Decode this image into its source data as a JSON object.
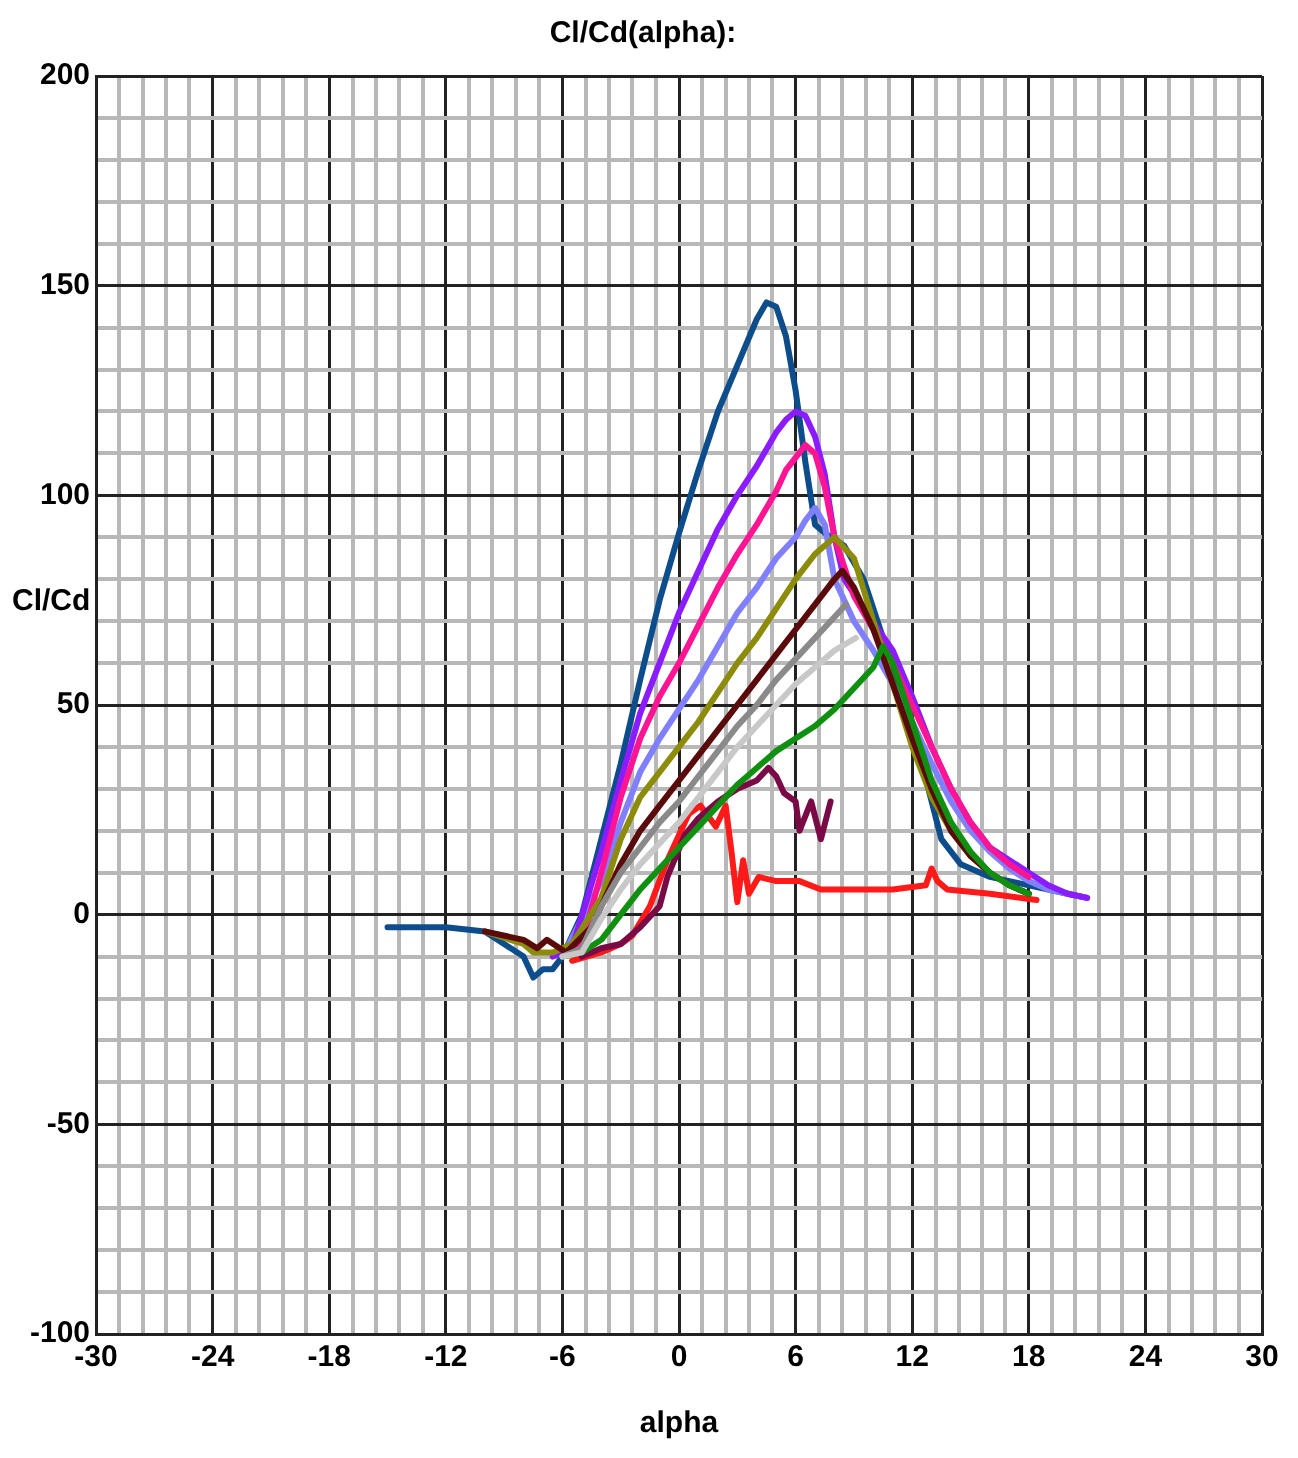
{
  "chart_data": {
    "type": "line",
    "title": "Cl/Cd(alpha):",
    "xlabel": "alpha",
    "ylabel": "Cl/Cd",
    "xlim": [
      -30,
      30
    ],
    "ylim": [
      -100,
      200
    ],
    "xticks": [
      -30,
      {
        "value": -28.8,
        "label": null
      },
      {
        "value": -27.6,
        "label": null
      },
      {
        "value": -26.4,
        "label": null
      },
      {
        "value": -25.2,
        "label": null
      },
      -24,
      {
        "value": -22.8,
        "label": null
      },
      {
        "value": -21.6,
        "label": null
      },
      {
        "value": -20.4,
        "label": null
      },
      {
        "value": -19.2,
        "label": null
      },
      -18,
      {
        "value": -16.8,
        "label": null
      },
      {
        "value": -15.6,
        "label": null
      },
      {
        "value": -14.4,
        "label": null
      },
      {
        "value": -13.2,
        "label": null
      },
      -12,
      {
        "value": -10.8,
        "label": null
      },
      {
        "value": -9.6,
        "label": null
      },
      {
        "value": -8.4,
        "label": null
      },
      {
        "value": -7.2,
        "label": null
      },
      -6,
      {
        "value": -4.8,
        "label": null
      },
      {
        "value": -3.6,
        "label": null
      },
      {
        "value": -2.4,
        "label": null
      },
      {
        "value": -1.2,
        "label": null
      },
      0,
      {
        "value": 1.2,
        "label": null
      },
      {
        "value": 2.4,
        "label": null
      },
      {
        "value": 3.6,
        "label": null
      },
      {
        "value": 4.8,
        "label": null
      },
      6,
      {
        "value": 7.2,
        "label": null
      },
      {
        "value": 8.4,
        "label": null
      },
      {
        "value": 9.6,
        "label": null
      },
      {
        "value": 10.8,
        "label": null
      },
      12,
      {
        "value": 13.2,
        "label": null
      },
      {
        "value": 14.4,
        "label": null
      },
      {
        "value": 15.6,
        "label": null
      },
      {
        "value": 16.8,
        "label": null
      },
      18,
      {
        "value": 19.2,
        "label": null
      },
      {
        "value": 20.4,
        "label": null
      },
      {
        "value": 21.6,
        "label": null
      },
      {
        "value": 22.8,
        "label": null
      },
      24,
      {
        "value": 25.2,
        "label": null
      },
      {
        "value": 26.4,
        "label": null
      },
      {
        "value": 27.6,
        "label": null
      },
      {
        "value": 28.8,
        "label": null
      },
      30
    ],
    "yticks": [
      -100,
      {
        "value": -90,
        "label": null
      },
      {
        "value": -80,
        "label": null
      },
      {
        "value": -70,
        "label": null
      },
      {
        "value": -60,
        "label": null
      },
      -50,
      {
        "value": -40,
        "label": null
      },
      {
        "value": -30,
        "label": null
      },
      {
        "value": -20,
        "label": null
      },
      {
        "value": -10,
        "label": null
      },
      0,
      {
        "value": 10,
        "label": null
      },
      {
        "value": 20,
        "label": null
      },
      {
        "value": 30,
        "label": null
      },
      {
        "value": 40,
        "label": null
      },
      50,
      {
        "value": 60,
        "label": null
      },
      {
        "value": 70,
        "label": null
      },
      {
        "value": 80,
        "label": null
      },
      {
        "value": 90,
        "label": null
      },
      100,
      {
        "value": 110,
        "label": null
      },
      {
        "value": 120,
        "label": null
      },
      {
        "value": 130,
        "label": null
      },
      {
        "value": 140,
        "label": null
      },
      150,
      {
        "value": 160,
        "label": null
      },
      {
        "value": 170,
        "label": null
      },
      {
        "value": 180,
        "label": null
      },
      {
        "value": 190,
        "label": null
      },
      200
    ],
    "grid": true,
    "legend": false,
    "marker": "none",
    "line_style": "solid",
    "series": [
      {
        "color": "#c8c8c8",
        "x": [
          -6,
          -5,
          -4,
          -3,
          -2,
          -1,
          0,
          1,
          2,
          3,
          4,
          5,
          6,
          7,
          8,
          9.1
        ],
        "values": [
          -10,
          -9,
          -1,
          6,
          12,
          17,
          22,
          28,
          34,
          40,
          45,
          50,
          55,
          59,
          63,
          66
        ]
      },
      {
        "color": "#8a8a8a",
        "x": [
          -6,
          -5,
          -4,
          -3,
          -2,
          -1,
          0,
          1,
          2,
          3,
          4,
          5,
          6,
          7,
          8,
          8.6
        ],
        "values": [
          -10,
          -8,
          2,
          10,
          16,
          22,
          27,
          33,
          39,
          45,
          50,
          56,
          61,
          66,
          71,
          74
        ]
      },
      {
        "color": "#109010",
        "x": [
          -6,
          -5,
          -4,
          -3,
          -2,
          -1,
          0,
          1,
          2,
          3,
          4,
          5,
          6,
          7,
          8,
          9,
          10,
          10.5,
          11,
          12,
          13,
          14,
          15,
          16,
          17,
          18
        ],
        "values": [
          -10,
          -9,
          -6,
          0,
          6,
          11,
          16,
          21,
          26,
          31,
          35,
          39,
          42,
          45,
          49,
          54,
          59,
          64,
          60,
          46,
          32,
          22,
          15,
          10,
          7,
          5
        ]
      },
      {
        "color": "#5a0a0a",
        "x": [
          -10,
          -8,
          -7.3,
          -6.8,
          -5.8,
          -4.5,
          -3,
          -2,
          -1,
          0,
          1,
          2,
          3,
          4,
          5,
          6,
          7,
          8,
          8.4,
          9,
          10,
          11,
          12,
          13,
          14,
          15,
          16,
          17,
          18
        ],
        "values": [
          -4,
          -6,
          -8,
          -6,
          -9,
          -3,
          12,
          20,
          26,
          32,
          38,
          44,
          50,
          56,
          62,
          68,
          74,
          80,
          82,
          78,
          68,
          55,
          42,
          30,
          20,
          14,
          10,
          7,
          5
        ]
      },
      {
        "color": "#8c8c0a",
        "x": [
          -10,
          -8,
          -7.5,
          -6.5,
          -5.5,
          -4,
          -3,
          -2,
          -1,
          0,
          1,
          2,
          3,
          4,
          5,
          6,
          7,
          8,
          9,
          10,
          11,
          12,
          13,
          14,
          15,
          16,
          17,
          18
        ],
        "values": [
          -4,
          -7,
          -9,
          -9,
          -7,
          4,
          18,
          28,
          34,
          40,
          46,
          53,
          60,
          66,
          73,
          80,
          86,
          90,
          85,
          70,
          55,
          40,
          28,
          20,
          14,
          10,
          7,
          5
        ]
      },
      {
        "color": "#ff1493",
        "x": [
          -6,
          -5,
          -4,
          -3,
          -2,
          -1,
          0,
          1,
          2,
          3,
          4,
          5,
          5.5,
          6,
          6.5,
          7,
          7.5,
          8,
          9,
          10,
          11,
          12,
          13,
          14,
          15,
          16,
          17,
          18
        ],
        "values": [
          -10,
          -7,
          10,
          28,
          42,
          52,
          60,
          69,
          78,
          86,
          93,
          101,
          106,
          109,
          112,
          110,
          102,
          90,
          76,
          68,
          60,
          50,
          40,
          30,
          22,
          16,
          12,
          9
        ]
      },
      {
        "color": "#8a1cff",
        "x": [
          -6.5,
          -5.5,
          -4,
          -3,
          -2,
          -1,
          0,
          1,
          2,
          3,
          4,
          5,
          5.5,
          6,
          6.5,
          7,
          7.5,
          8,
          8.5,
          9.5,
          11,
          12,
          13,
          14,
          15,
          16,
          17,
          18,
          19,
          20,
          21
        ],
        "values": [
          -10,
          -8,
          15,
          32,
          48,
          60,
          72,
          82,
          92,
          100,
          107,
          115,
          118,
          120,
          119,
          114,
          105,
          90,
          80,
          73,
          63,
          52,
          40,
          30,
          22,
          16,
          13,
          10,
          7,
          5,
          4
        ]
      },
      {
        "color": "#8080ff",
        "x": [
          -6,
          -4,
          -3,
          -2,
          -1,
          0,
          1,
          2,
          3,
          4,
          5,
          6,
          6.5,
          7,
          7.5,
          8,
          9,
          10,
          11,
          12,
          13,
          14,
          15,
          16,
          17,
          18,
          19,
          20,
          21
        ],
        "values": [
          -10,
          8,
          22,
          34,
          42,
          49,
          56,
          64,
          72,
          78,
          85,
          90,
          94,
          97,
          93,
          80,
          70,
          63,
          55,
          46,
          36,
          27,
          20,
          15,
          11,
          8,
          6,
          5,
          4
        ]
      },
      {
        "color": "#7a0a45",
        "x": [
          -5,
          -4,
          -3,
          -2,
          -1,
          -0.6,
          0.3,
          1,
          2,
          3,
          4,
          4.6,
          5,
          5.4,
          6,
          6.2,
          6.8,
          7.3,
          7.8
        ],
        "values": [
          -10,
          -8,
          -7,
          -3,
          2,
          9,
          19,
          23,
          27,
          30,
          32,
          35,
          33,
          29,
          27,
          20,
          27,
          18,
          27
        ]
      },
      {
        "color": "#ff1a1a",
        "x": [
          -5.5,
          -4,
          -3,
          -2.4,
          -1.5,
          -0.6,
          0.5,
          1.1,
          1.9,
          2.4,
          2.7,
          3.0,
          3.3,
          3.6,
          4.1,
          5,
          6.2,
          7.3,
          9.5,
          11,
          12.7,
          13.0,
          13.3,
          13.8,
          16,
          18.4
        ],
        "values": [
          -11,
          -9,
          -7,
          -5,
          2,
          13,
          24,
          26,
          21,
          26,
          15,
          3,
          13,
          5,
          9,
          8,
          8,
          6,
          6,
          6,
          7,
          11,
          8,
          6,
          5,
          3.5
        ]
      },
      {
        "color": "#0d4d8c",
        "x": [
          -15,
          -12,
          -10,
          -9,
          -8,
          -7.5,
          -7,
          -6.5,
          -6,
          -5,
          -4,
          -3,
          -2,
          -1,
          0,
          1,
          2,
          3,
          4,
          4.5,
          5,
          5.5,
          6,
          6.5,
          7,
          7.5,
          8.5,
          9.5,
          10.5,
          11.5,
          12.5,
          13.5,
          14.5,
          16,
          18,
          20,
          21
        ],
        "values": [
          -3,
          -3,
          -4,
          -7,
          -10,
          -15,
          -13,
          -13,
          -10,
          0,
          18,
          36,
          56,
          75,
          91,
          106,
          120,
          131,
          142,
          146,
          145,
          138,
          125,
          108,
          93,
          91,
          88,
          80,
          66,
          50,
          36,
          18,
          12,
          9,
          7,
          5,
          4
        ]
      }
    ]
  }
}
